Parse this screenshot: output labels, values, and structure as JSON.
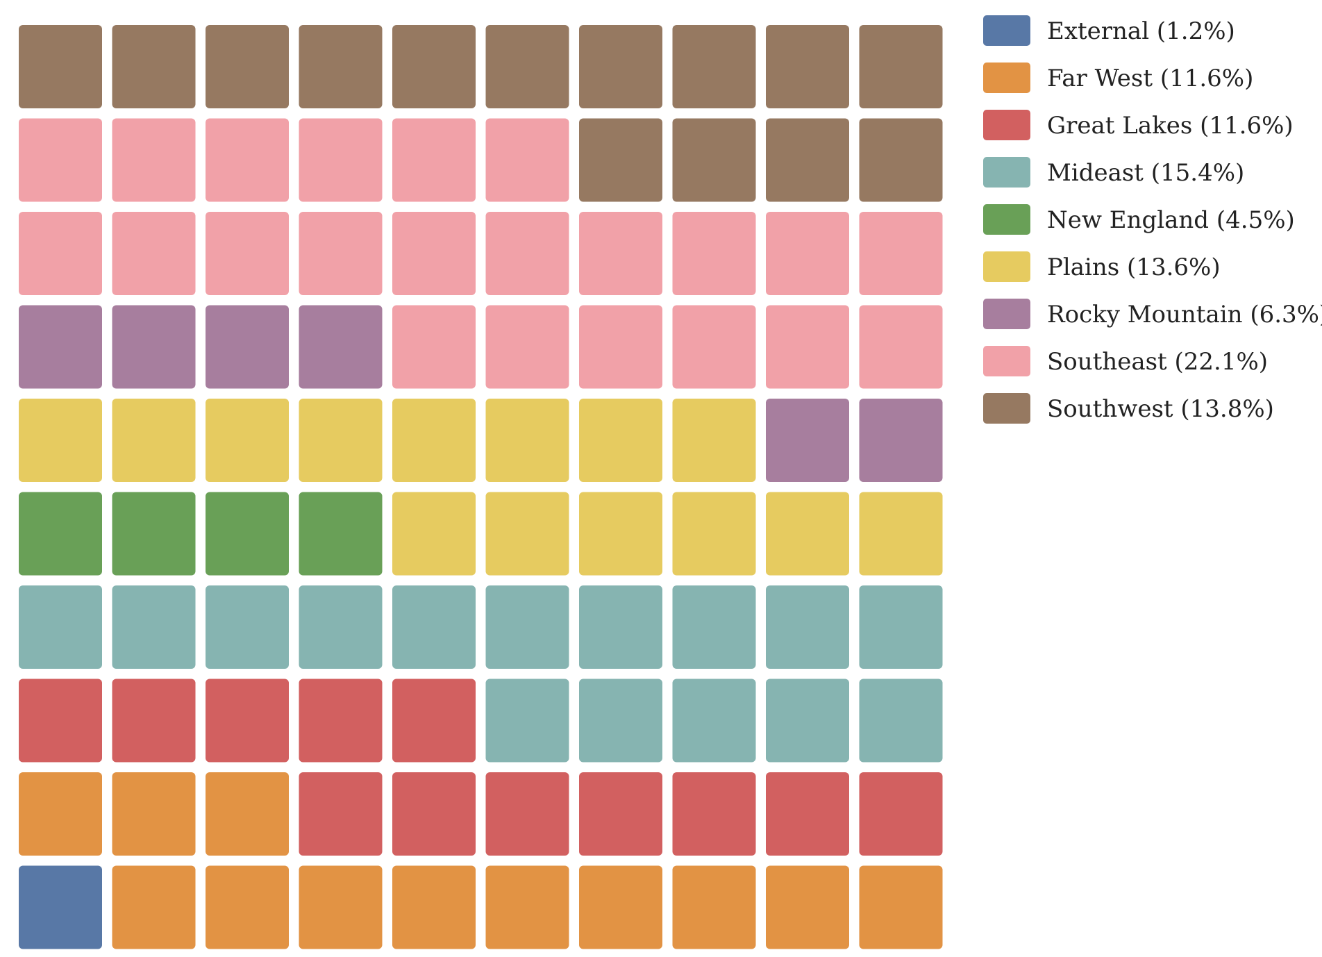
{
  "chart_data": {
    "type": "waffle",
    "grid": {
      "rows": 10,
      "cols": 10
    },
    "title": "",
    "series": [
      {
        "name": "External",
        "pct": "1.2%",
        "squares": 1,
        "color": "#5878a6"
      },
      {
        "name": "Far West",
        "pct": "11.6%",
        "squares": 12,
        "color": "#e29344"
      },
      {
        "name": "Great Lakes",
        "pct": "11.6%",
        "squares": 12,
        "color": "#d26060"
      },
      {
        "name": "Mideast",
        "pct": "15.4%",
        "squares": 15,
        "color": "#86b4b1"
      },
      {
        "name": "New England",
        "pct": "4.5%",
        "squares": 4,
        "color": "#69a057"
      },
      {
        "name": "Plains",
        "pct": "13.6%",
        "squares": 14,
        "color": "#e6cb60"
      },
      {
        "name": "Rocky Mountain",
        "pct": "6.3%",
        "squares": 6,
        "color": "#a77e9e"
      },
      {
        "name": "Southeast",
        "pct": "22.1%",
        "squares": 22,
        "color": "#f1a1a8"
      },
      {
        "name": "Southwest",
        "pct": "13.8%",
        "squares": 14,
        "color": "#967961"
      }
    ],
    "fill_order": "bottom-left to right, row by row upward",
    "legend_position": "right"
  }
}
